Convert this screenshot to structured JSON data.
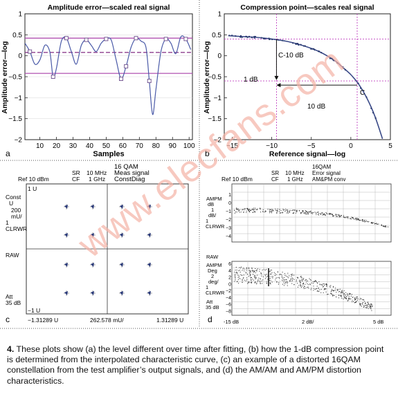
{
  "watermark": "www.elecfans.com",
  "panel_a": {
    "letter": "a",
    "title": "Amplitude error—scaled real signal",
    "ylabel": "Amplitude error—log",
    "xlabel": "Samples",
    "yticks": [
      "1",
      "0.5",
      "0",
      "−0.5",
      "−1",
      "−1.5",
      "−2"
    ],
    "xticks": [
      "10",
      "20",
      "30",
      "40",
      "50",
      "60",
      "70",
      "80",
      "90",
      "100"
    ]
  },
  "panel_b": {
    "letter": "b",
    "title": "Compression point—scales real signal",
    "ylabel": "Amplitude error—log",
    "xlabel": "Reference signal—log",
    "yticks": [
      "1",
      "0.5",
      "0",
      "−0.5",
      "−1",
      "−1.5",
      "−2"
    ],
    "xticks": [
      "−15",
      "−10",
      "−5",
      "0",
      "5"
    ],
    "annotations": {
      "c10": "C-10 dB",
      "one_db": "1 dB",
      "ten_db": "10 dB",
      "c": "C"
    }
  },
  "panel_c": {
    "letter": "c",
    "header": {
      "ref": "Ref 10 dBm",
      "sr": "SR",
      "cf": "CF",
      "mhz": "10 MHz",
      "ghz": "1 GHz",
      "title1": "16 QAM",
      "title2": "Meas signal",
      "title3": "ConstDiag"
    },
    "left": {
      "top_u": "1 U",
      "const": "Const",
      "u": "U",
      "mu": "200",
      "mu2": "mU/",
      "clr_num": "1",
      "clrwr": "CLRWR",
      "raw": "RAW",
      "att": "Att",
      "att2": "35 dB",
      "bot_u": "−1 U"
    },
    "bottom": {
      "left": "−1.31289 U",
      "mid": "262.578 mU/",
      "right": "1.31289 U"
    }
  },
  "panel_d": {
    "letter": "d",
    "header": {
      "ref": "Ref 10 dBm",
      "sr": "SR",
      "cf": "CF",
      "mhz": "10 MHz",
      "ghz": "1 GHz",
      "title1": "16QAM",
      "title2": "Error signal",
      "title3": "AM&PM conv"
    },
    "top": {
      "l1": "AMPM",
      "l2": "dB",
      "l3": "1",
      "l4": "dB/",
      "l5": "1",
      "l6": "CLRWR",
      "ticks": [
        "1",
        "0",
        "−1",
        "−2",
        "−3",
        "−4"
      ]
    },
    "bottom": {
      "raw": "RAW",
      "l1": "AMPM",
      "l2": "Deg",
      "l3": "2",
      "l4": "deg/",
      "l5": "1",
      "l6": "CLRWR",
      "l7": "Att",
      "l8": "35 dB",
      "ticks": [
        "6",
        "4",
        "2",
        "0",
        "−2",
        "−4",
        "−6",
        "−8"
      ]
    },
    "xaxis": {
      "left": "-15 dB",
      "mid": "2 dB/",
      "right": "5 dB"
    }
  },
  "caption": {
    "number": "4.",
    "text": " These plots show (a) the level different over time after fitting, (b) how the 1-dB compression point is determined from the interpolated characteristic curve, (c) an example of a distorted 16QAM constellation from the test amplifier’s output signals, and (d) the AM/AM and AM/PM distortion characteristics."
  },
  "chart_data": [
    {
      "type": "line",
      "title": "Amplitude error—scaled real signal",
      "xlabel": "Samples",
      "ylabel": "Amplitude error—log",
      "xlim": [
        1,
        102
      ],
      "ylim": [
        -2,
        1
      ],
      "x": [
        1,
        4,
        7,
        10,
        13,
        16,
        18,
        20,
        23,
        26,
        29,
        32,
        35,
        38,
        41,
        44,
        47,
        50,
        53,
        56,
        59,
        62,
        65,
        68,
        71,
        74,
        76,
        78,
        80,
        83,
        86,
        89,
        92,
        95,
        98,
        101
      ],
      "y": [
        0.3,
        0.1,
        -0.2,
        -0.1,
        0.25,
        0.1,
        -0.5,
        -0.3,
        0.35,
        0.42,
        0.1,
        -0.2,
        0.25,
        0.38,
        0.25,
        0.1,
        0.3,
        0.4,
        0.38,
        -0.1,
        -0.55,
        -0.25,
        0.2,
        0.42,
        0.35,
        0.2,
        -0.6,
        -1.4,
        -0.8,
        0.1,
        0.4,
        0.3,
        0.05,
        0.45,
        0.4,
        0.15
      ],
      "hlines": [
        0.42,
        0.08,
        -0.42
      ]
    },
    {
      "type": "line",
      "title": "Compression point—scales real signal",
      "xlabel": "Reference signal—log",
      "ylabel": "Amplitude error—log",
      "xlim": [
        -16,
        5
      ],
      "ylim": [
        -2,
        1
      ],
      "x": [
        -15.5,
        -14,
        -12,
        -10,
        -8,
        -6,
        -4,
        -2,
        -1,
        0,
        1,
        2,
        3,
        4
      ],
      "y": [
        0.48,
        0.46,
        0.44,
        0.4,
        0.34,
        0.24,
        0.1,
        -0.12,
        -0.28,
        -0.45,
        -0.68,
        -1.0,
        -1.42,
        -1.98
      ],
      "vlines": [
        -9.4,
        0.8
      ],
      "hlines": [
        0.4,
        -0.6
      ]
    }
  ]
}
